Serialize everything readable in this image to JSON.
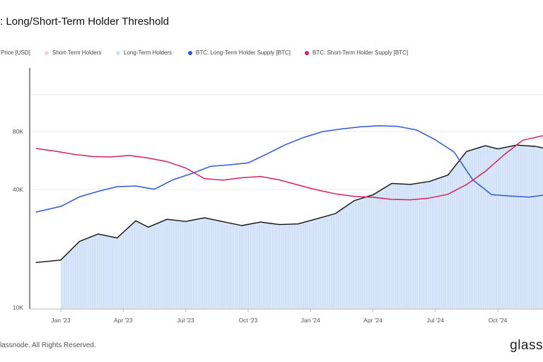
{
  "chart_data": {
    "type": "line",
    "title": ": Long/Short-Term Holder Threshold",
    "legend": [
      {
        "label": "Price [USD]",
        "color": "#bbbbbb"
      },
      {
        "label": "Short-Term Holders",
        "color": "#f8d3d3"
      },
      {
        "label": "Long-Term Holders",
        "color": "#cfe2f7"
      },
      {
        "label": "BTC: Long-Term Holder Supply [BTC]",
        "color": "#2f59d6"
      },
      {
        "label": "BTC: Short-Term Holder Supply [BTC]",
        "color": "#d81f5f"
      }
    ],
    "x_ticks": [
      "Jan '23",
      "Apr '23",
      "Jul '23",
      "Oct '23",
      "Jan '24",
      "Apr '24",
      "Jul '24",
      "Oct '24"
    ],
    "y_ticks": [
      "10K",
      "40K",
      "80K"
    ],
    "y_scale": "log",
    "shading": [
      {
        "label": "Long-Term Holders",
        "from": 0,
        "to": 10.45
      },
      {
        "label": "Short-Term Holders",
        "from": 10.45,
        "to": 12
      }
    ],
    "series": [
      {
        "name": "Price [USD]",
        "color": "#111111",
        "x": [
          -0.4,
          0,
          0.3,
          0.6,
          0.9,
          1.2,
          1.4,
          1.7,
          2,
          2.3,
          2.6,
          2.9,
          3.2,
          3.5,
          3.8,
          4.1,
          4.4,
          4.7,
          5,
          5.3,
          5.6,
          5.9,
          6.2,
          6.5,
          6.8,
          7,
          7.3,
          7.6,
          7.9,
          8.2,
          8.5,
          8.8,
          9.1,
          9.4,
          9.7,
          10,
          10.3,
          10.6,
          10.9,
          11.2,
          11.5,
          11.8,
          12,
          12.3
        ],
        "y": [
          16700,
          17200,
          21500,
          23500,
          22400,
          27500,
          25500,
          28000,
          27300,
          28500,
          27200,
          26000,
          27100,
          26300,
          26500,
          28200,
          30000,
          35000,
          37500,
          43000,
          42500,
          44000,
          47500,
          63000,
          67500,
          65000,
          68000,
          67000,
          64000,
          60000,
          62000,
          63500,
          61500,
          58000,
          57500,
          60500,
          62000,
          68500,
          77000,
          91000,
          95500,
          99000,
          100000,
          102000
        ]
      },
      {
        "name": "BTC: Long-Term Holder Supply [BTC]",
        "color": "#2f59d6",
        "x": [
          -0.4,
          0,
          0.3,
          0.6,
          0.9,
          1.2,
          1.5,
          1.8,
          2.1,
          2.4,
          2.7,
          3,
          3.3,
          3.6,
          3.9,
          4.2,
          4.5,
          4.8,
          5.1,
          5.4,
          5.7,
          6,
          6.3,
          6.6,
          6.9,
          7.2,
          7.5,
          7.8,
          8.1,
          8.4,
          8.7,
          9,
          9.3,
          9.6,
          9.9,
          10.2,
          10.5,
          10.8,
          11.1,
          11.4,
          11.7,
          12,
          12.3
        ],
        "y": [
          12.0,
          12.27,
          12.72,
          12.98,
          13.2,
          13.23,
          13.08,
          13.53,
          13.82,
          14.16,
          14.23,
          14.32,
          14.74,
          15.18,
          15.53,
          15.8,
          15.92,
          16.02,
          16.07,
          16.04,
          15.87,
          15.41,
          14.83,
          13.52,
          12.82,
          12.76,
          12.71,
          12.83,
          13.01,
          13.18,
          13.25,
          13.11,
          13.22,
          13.82,
          14.58,
          15.49,
          15.87,
          15.6,
          15.6,
          15.08,
          15.24,
          14.5,
          12.3
        ]
      },
      {
        "name": "BTC: Short-Term Holder Supply [BTC]",
        "color": "#d81f5f",
        "x": [
          -0.4,
          -0.1,
          0.2,
          0.5,
          0.8,
          1.1,
          1.4,
          1.7,
          2,
          2.3,
          2.6,
          2.9,
          3.2,
          3.5,
          3.8,
          4.1,
          4.4,
          4.7,
          5,
          5.3,
          5.6,
          5.9,
          6.2,
          6.5,
          6.8,
          7.1,
          7.4,
          7.7,
          8,
          8.3,
          8.6,
          8.9,
          9.2,
          9.5,
          9.8,
          10.1,
          10.4,
          10.7,
          11,
          11.3,
          11.6,
          11.9,
          12.2
        ],
        "y": [
          15.0,
          14.88,
          14.73,
          14.62,
          14.6,
          14.67,
          14.55,
          14.38,
          14.08,
          13.58,
          13.51,
          13.62,
          13.68,
          13.52,
          13.28,
          13.05,
          12.86,
          12.74,
          12.7,
          12.6,
          12.58,
          12.66,
          12.84,
          13.3,
          13.92,
          14.7,
          15.39,
          15.59,
          15.55,
          15.45,
          15.35,
          15.1,
          14.62,
          13.95,
          13.42,
          13.41,
          13.5,
          14.42,
          14.7,
          15.21,
          15.69,
          16.22,
          16.45
        ]
      }
    ]
  },
  "footer": {
    "copyright": "lassnode. All Rights Reserved.",
    "brand": "glass"
  }
}
